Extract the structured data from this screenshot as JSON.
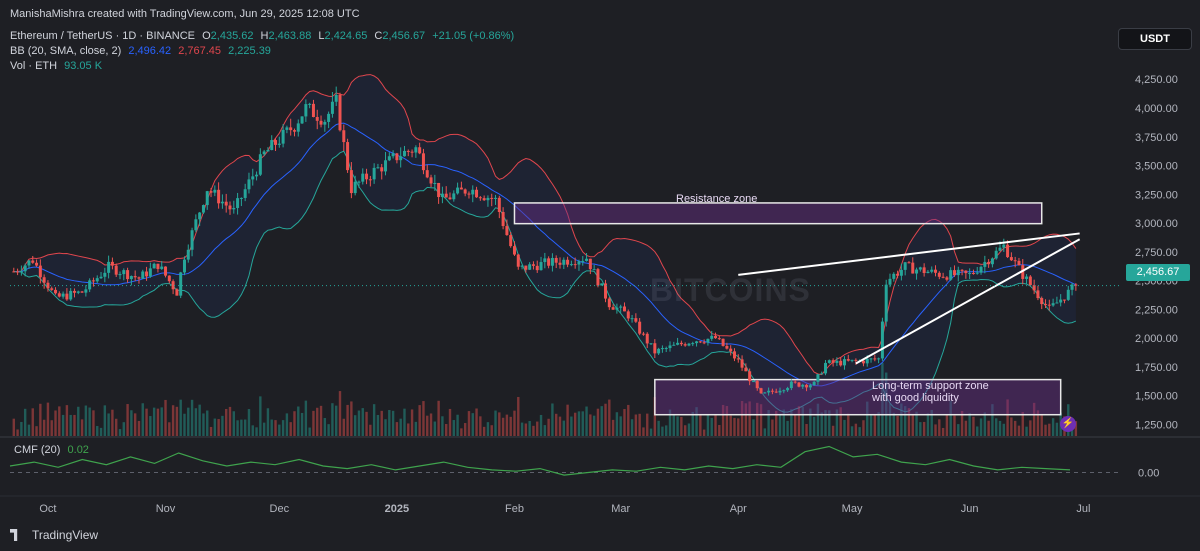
{
  "header": {
    "attribution": "ManishaMishra created with TradingView.com, Jun 29, 2025 12:08 UTC",
    "symbol": "Ethereum / TetherUS · 1D · BINANCE",
    "o_label": "O",
    "o_value": "2,435.62",
    "h_label": "H",
    "h_value": "2,463.88",
    "l_label": "L",
    "l_value": "2,424.65",
    "c_label": "C",
    "c_value": "2,456.67",
    "change": "+21.05 (+0.86%)",
    "bb_label": "BB (20, SMA, close, 2)",
    "bb_basis": "2,496.42",
    "bb_upper": "2,767.45",
    "bb_lower": "2,225.39",
    "vol_label": "Vol · ETH",
    "vol_value": "93.05 K"
  },
  "currency_badge": "USDT",
  "last_price": "2,456.67",
  "watermark": "BITCOINS",
  "footer": {
    "brand": "TradingView"
  },
  "colors": {
    "background": "#1e1f24",
    "up": "#26a69a",
    "down": "#ef5350",
    "bb_basis": "#2962ff",
    "bb_upper": "#e0464d",
    "bb_lower": "#26a69a",
    "cmf": "#3fa34d",
    "zone_fill": "#4a2a5c"
  },
  "annotations": {
    "resistance_label": "Resistance zone",
    "support_label_line1": "Long-term support zone",
    "support_label_line2": "with good liquidity"
  },
  "chart_data": [
    {
      "type": "candlestick",
      "title": "Ethereum / TetherUS · 1D · BINANCE",
      "x_tick_labels": [
        "Oct",
        "Nov",
        "Dec",
        "2025",
        "Feb",
        "Mar",
        "Apr",
        "May",
        "Jun",
        "Jul"
      ],
      "y_tick_labels": [
        "4,250.00",
        "4,000.00",
        "3,750.00",
        "3,500.00",
        "3,250.00",
        "3,000.00",
        "2,750.00",
        "2,500.00",
        "2,250.00",
        "2,000.00",
        "1,750.00",
        "1,500.00",
        "1,250.00"
      ],
      "ylim": [
        1150,
        4330
      ],
      "close_path": [
        {
          "date": "2024-09-22",
          "close": 2580
        },
        {
          "date": "2024-09-27",
          "close": 2680
        },
        {
          "date": "2024-10-03",
          "close": 2350
        },
        {
          "date": "2024-10-10",
          "close": 2400
        },
        {
          "date": "2024-10-17",
          "close": 2620
        },
        {
          "date": "2024-10-25",
          "close": 2520
        },
        {
          "date": "2024-10-30",
          "close": 2640
        },
        {
          "date": "2024-11-04",
          "close": 2400
        },
        {
          "date": "2024-11-06",
          "close": 2720
        },
        {
          "date": "2024-11-12",
          "close": 3300
        },
        {
          "date": "2024-11-19",
          "close": 3100
        },
        {
          "date": "2024-11-27",
          "close": 3600
        },
        {
          "date": "2024-12-05",
          "close": 3850
        },
        {
          "date": "2024-12-08",
          "close": 4000
        },
        {
          "date": "2024-12-13",
          "close": 3900
        },
        {
          "date": "2024-12-16",
          "close": 4050
        },
        {
          "date": "2024-12-20",
          "close": 3300
        },
        {
          "date": "2024-12-26",
          "close": 3450
        },
        {
          "date": "2025-01-02",
          "close": 3600
        },
        {
          "date": "2025-01-06",
          "close": 3650
        },
        {
          "date": "2025-01-13",
          "close": 3200
        },
        {
          "date": "2025-01-20",
          "close": 3300
        },
        {
          "date": "2025-01-27",
          "close": 3200
        },
        {
          "date": "2025-02-02",
          "close": 2600
        },
        {
          "date": "2025-02-09",
          "close": 2650
        },
        {
          "date": "2025-02-20",
          "close": 2700
        },
        {
          "date": "2025-02-26",
          "close": 2300
        },
        {
          "date": "2025-03-03",
          "close": 2200
        },
        {
          "date": "2025-03-10",
          "close": 1880
        },
        {
          "date": "2025-03-20",
          "close": 1980
        },
        {
          "date": "2025-03-26",
          "close": 2000
        },
        {
          "date": "2025-04-01",
          "close": 1800
        },
        {
          "date": "2025-04-07",
          "close": 1500
        },
        {
          "date": "2025-04-15",
          "close": 1600
        },
        {
          "date": "2025-04-21",
          "close": 1600
        },
        {
          "date": "2025-04-24",
          "close": 1780
        },
        {
          "date": "2025-05-03",
          "close": 1800
        },
        {
          "date": "2025-05-08",
          "close": 1820
        },
        {
          "date": "2025-05-10",
          "close": 2500
        },
        {
          "date": "2025-05-15",
          "close": 2620
        },
        {
          "date": "2025-05-25",
          "close": 2550
        },
        {
          "date": "2025-06-01",
          "close": 2550
        },
        {
          "date": "2025-06-10",
          "close": 2800
        },
        {
          "date": "2025-06-15",
          "close": 2550
        },
        {
          "date": "2025-06-22",
          "close": 2250
        },
        {
          "date": "2025-06-29",
          "close": 2456.67
        }
      ],
      "last_price": 2456.67,
      "resistance_zone": {
        "label": "Resistance zone",
        "from_date": "2025-02-01",
        "to_date": "2025-06-20",
        "low": 2995,
        "high": 3175
      },
      "support_zone": {
        "label": "Long-term support zone with good liquidity",
        "from_date": "2025-03-10",
        "to_date": "2025-06-25",
        "low": 1335,
        "high": 1640
      },
      "wedge_upper": {
        "from": {
          "date": "2025-04-01",
          "price": 2550
        },
        "to": {
          "date": "2025-06-30",
          "price": 2910
        }
      },
      "wedge_lower": {
        "from": {
          "date": "2025-05-02",
          "price": 1780
        },
        "to": {
          "date": "2025-06-30",
          "price": 2860
        }
      },
      "bollinger": {
        "basis": 2496.42,
        "upper": 2767.45,
        "lower": 2225.39,
        "period": 20,
        "stddev": 2
      }
    },
    {
      "type": "line",
      "title": "CMF (20)",
      "current_value": "0.02",
      "y_tick_labels": [
        "0.00"
      ],
      "ylim": [
        -0.15,
        0.25
      ],
      "values": [
        0.05,
        0.08,
        0.04,
        0.1,
        0.06,
        0.12,
        0.07,
        0.15,
        0.09,
        0.05,
        0.08,
        0.06,
        0.1,
        0.05,
        0.03,
        0.06,
        0.02,
        0.05,
        0.08,
        0.04,
        0.02,
        0.01,
        0.03,
        -0.02,
        0.0,
        0.02,
        0.01,
        0.04,
        0.02,
        0.05,
        0.03,
        0.06,
        0.04,
        0.16,
        0.2,
        0.12,
        0.14,
        0.08,
        0.06,
        0.1,
        0.05,
        0.02,
        0.04,
        0.03,
        0.02
      ]
    }
  ]
}
